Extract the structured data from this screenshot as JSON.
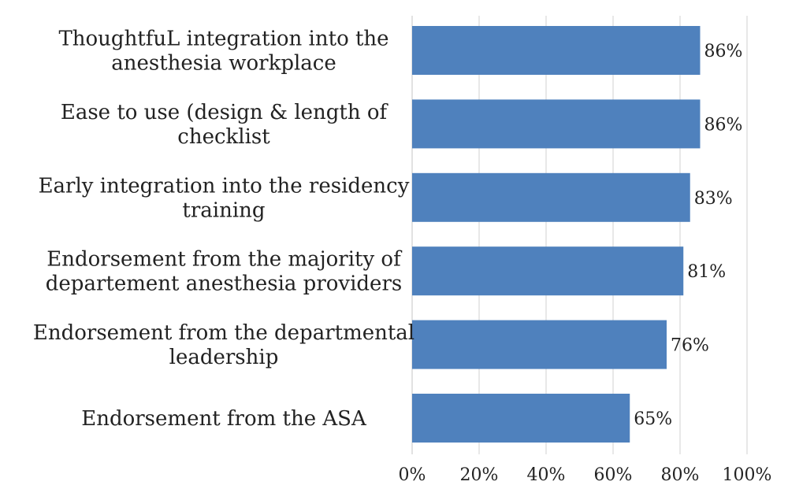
{
  "chart_data": {
    "type": "bar",
    "orientation": "horizontal",
    "categories": [
      [
        "ThoughtfuL integration into the",
        "anesthesia workplace"
      ],
      [
        "Ease to use (design & length of",
        "checklist"
      ],
      [
        "Early integration into the residency",
        "training"
      ],
      [
        "Endorsement from the majority of",
        "departement anesthesia providers"
      ],
      [
        "Endorsement from the departmental",
        "leadership"
      ],
      [
        "Endorsement from the ASA"
      ]
    ],
    "values": [
      86,
      86,
      83,
      81,
      76,
      65
    ],
    "value_labels": [
      "86%",
      "86%",
      "83%",
      "81%",
      "76%",
      "65%"
    ],
    "xlim": [
      0,
      100
    ],
    "x_ticks": [
      0,
      20,
      40,
      60,
      80,
      100
    ],
    "x_tick_labels": [
      "0%",
      "20%",
      "40%",
      "60%",
      "80%",
      "100%"
    ],
    "grid": "vertical",
    "bar_color": "#4f81bd",
    "grid_color": "#d9d9d9"
  }
}
